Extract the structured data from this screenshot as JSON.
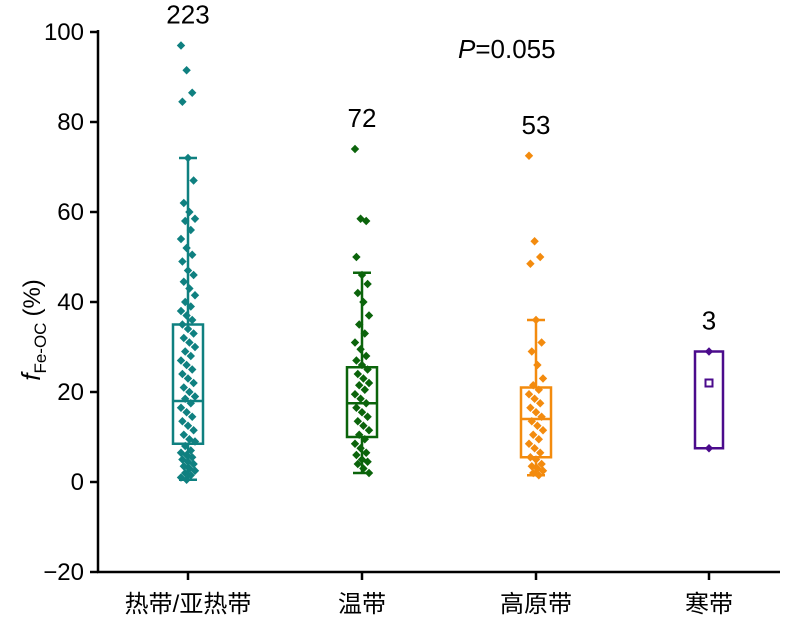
{
  "chart_data": {
    "type": "box",
    "ylabel_main": "f",
    "ylabel_sub": "Fe-OC",
    "ylabel_unit": "(%)",
    "ylim": [
      -20,
      100
    ],
    "yticks": [
      -20,
      0,
      20,
      40,
      60,
      80,
      100
    ],
    "ytick_labels": [
      "−20",
      "0",
      "20",
      "40",
      "60",
      "80",
      "100"
    ],
    "annotation": {
      "italic": "P",
      "rest": "=0.055"
    },
    "categories": [
      "热带/亚热带",
      "温带",
      "高原带",
      "寒带"
    ],
    "groups": [
      {
        "category": "热带/亚热带",
        "count": "223",
        "color": "#0f8080",
        "q1": 8.5,
        "median": 18.0,
        "q3": 35.0,
        "whisker_low": 0.5,
        "whisker_high": 72.0,
        "points": [
          97,
          91.5,
          86.5,
          84.5,
          72,
          67,
          62,
          60,
          58.5,
          58,
          56,
          54,
          52,
          50.5,
          49,
          47,
          46,
          44.5,
          43,
          41.5,
          40,
          39,
          38,
          37,
          36,
          35,
          34,
          33,
          32,
          31,
          30,
          29,
          28,
          27,
          26,
          25,
          24,
          23,
          22,
          21,
          20,
          19,
          18.5,
          17.5,
          16.5,
          15.5,
          14.5,
          13.5,
          12.5,
          11.5,
          10.5,
          9.5,
          9,
          8,
          7,
          6.5,
          6,
          5.5,
          5,
          4.5,
          4,
          3.5,
          3,
          2.5,
          2,
          1.5,
          1,
          0.5
        ]
      },
      {
        "category": "温带",
        "count": "72",
        "color": "#0b640b",
        "q1": 10.0,
        "median": 17.5,
        "q3": 25.5,
        "whisker_low": 2.0,
        "whisker_high": 46.5,
        "points": [
          74,
          58.5,
          58,
          50,
          46,
          44,
          42,
          40,
          37,
          35,
          33,
          31,
          29.5,
          28,
          27,
          26,
          25,
          24,
          23,
          22,
          21.5,
          20.5,
          19.5,
          18.5,
          17.5,
          16.5,
          15.5,
          14.5,
          13.5,
          12.5,
          11.5,
          10.5,
          9.5,
          8.5,
          7.5,
          6.5,
          6,
          5,
          4.5,
          4,
          3,
          2
        ]
      },
      {
        "category": "高原带",
        "count": "53",
        "color": "#f38b0e",
        "q1": 5.5,
        "median": 14.0,
        "q3": 21.0,
        "whisker_low": 1.5,
        "whisker_high": 36.0,
        "points": [
          72.5,
          53.5,
          50,
          48.5,
          36,
          31,
          29,
          26,
          23,
          21.5,
          20.5,
          19.5,
          18.5,
          17.5,
          16.5,
          15.5,
          14.5,
          13.5,
          12.5,
          11.5,
          10.5,
          9.5,
          8.5,
          7.5,
          6.5,
          5.5,
          5,
          4,
          3.5,
          3,
          2.5,
          2,
          1.5
        ]
      },
      {
        "category": "寒带",
        "count": "3",
        "color": "#4b0b8c",
        "q1": 7.5,
        "median": null,
        "q3": 29.0,
        "mean": 22.0,
        "whisker_low": null,
        "whisker_high": null,
        "points": [
          29,
          7.5
        ]
      }
    ]
  }
}
